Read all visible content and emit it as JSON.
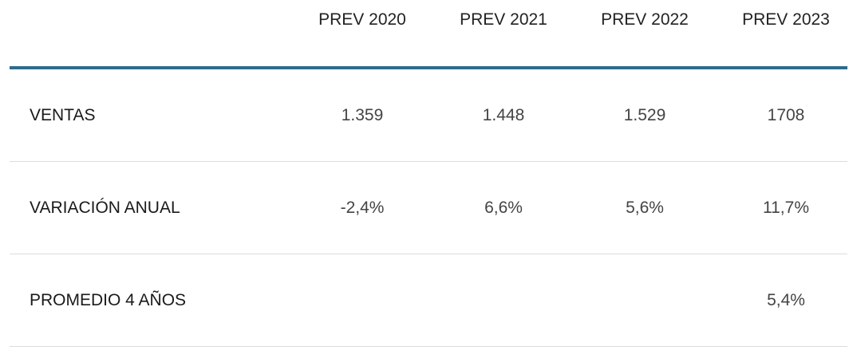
{
  "table": {
    "header": [
      "PREV 2020",
      "PREV 2021",
      "PREV 2022",
      "PREV 2023"
    ],
    "rows": [
      {
        "label": "VENTAS",
        "cells": [
          "1.359",
          "1.448",
          "1.529",
          "1708"
        ]
      },
      {
        "label": "VARIACIÓN ANUAL",
        "cells": [
          "-2,4%",
          "6,6%",
          "5,6%",
          "11,7%"
        ]
      },
      {
        "label": "PROMEDIO 4 AÑOS",
        "cells": [
          null,
          null,
          null,
          "5,4%"
        ]
      }
    ]
  }
}
